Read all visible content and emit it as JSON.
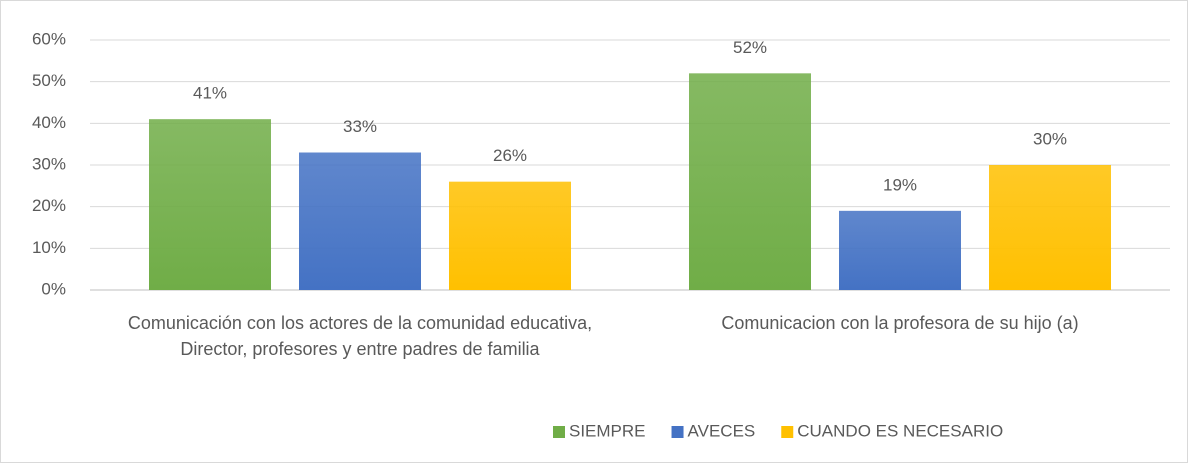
{
  "chart_data": {
    "type": "bar",
    "categories": [
      "Comunicación con los actores de la comunidad educativa, Director, profesores y entre padres de familia",
      "Comunicacion con la profesora de su hijo (a)"
    ],
    "series": [
      {
        "name": "SIEMPRE",
        "color": "#70ad47",
        "values": [
          41,
          52
        ],
        "value_labels": [
          "41%",
          "52%"
        ]
      },
      {
        "name": "AVECES",
        "color": "#4472c4",
        "values": [
          33,
          19
        ],
        "value_labels": [
          "33%",
          "19%"
        ]
      },
      {
        "name": "CUANDO ES NECESARIO",
        "color": "#ffc000",
        "values": [
          26,
          30
        ],
        "value_labels": [
          "26%",
          "30%"
        ]
      }
    ],
    "ylim": [
      0,
      60
    ],
    "yticks": [
      {
        "value": 0,
        "label": "0%"
      },
      {
        "value": 10,
        "label": "10%"
      },
      {
        "value": 20,
        "label": "20%"
      },
      {
        "value": 30,
        "label": "30%"
      },
      {
        "value": 40,
        "label": "40%"
      },
      {
        "value": 50,
        "label": "50%"
      },
      {
        "value": 60,
        "label": "60%"
      }
    ],
    "grid": true,
    "legend": "bottom"
  }
}
